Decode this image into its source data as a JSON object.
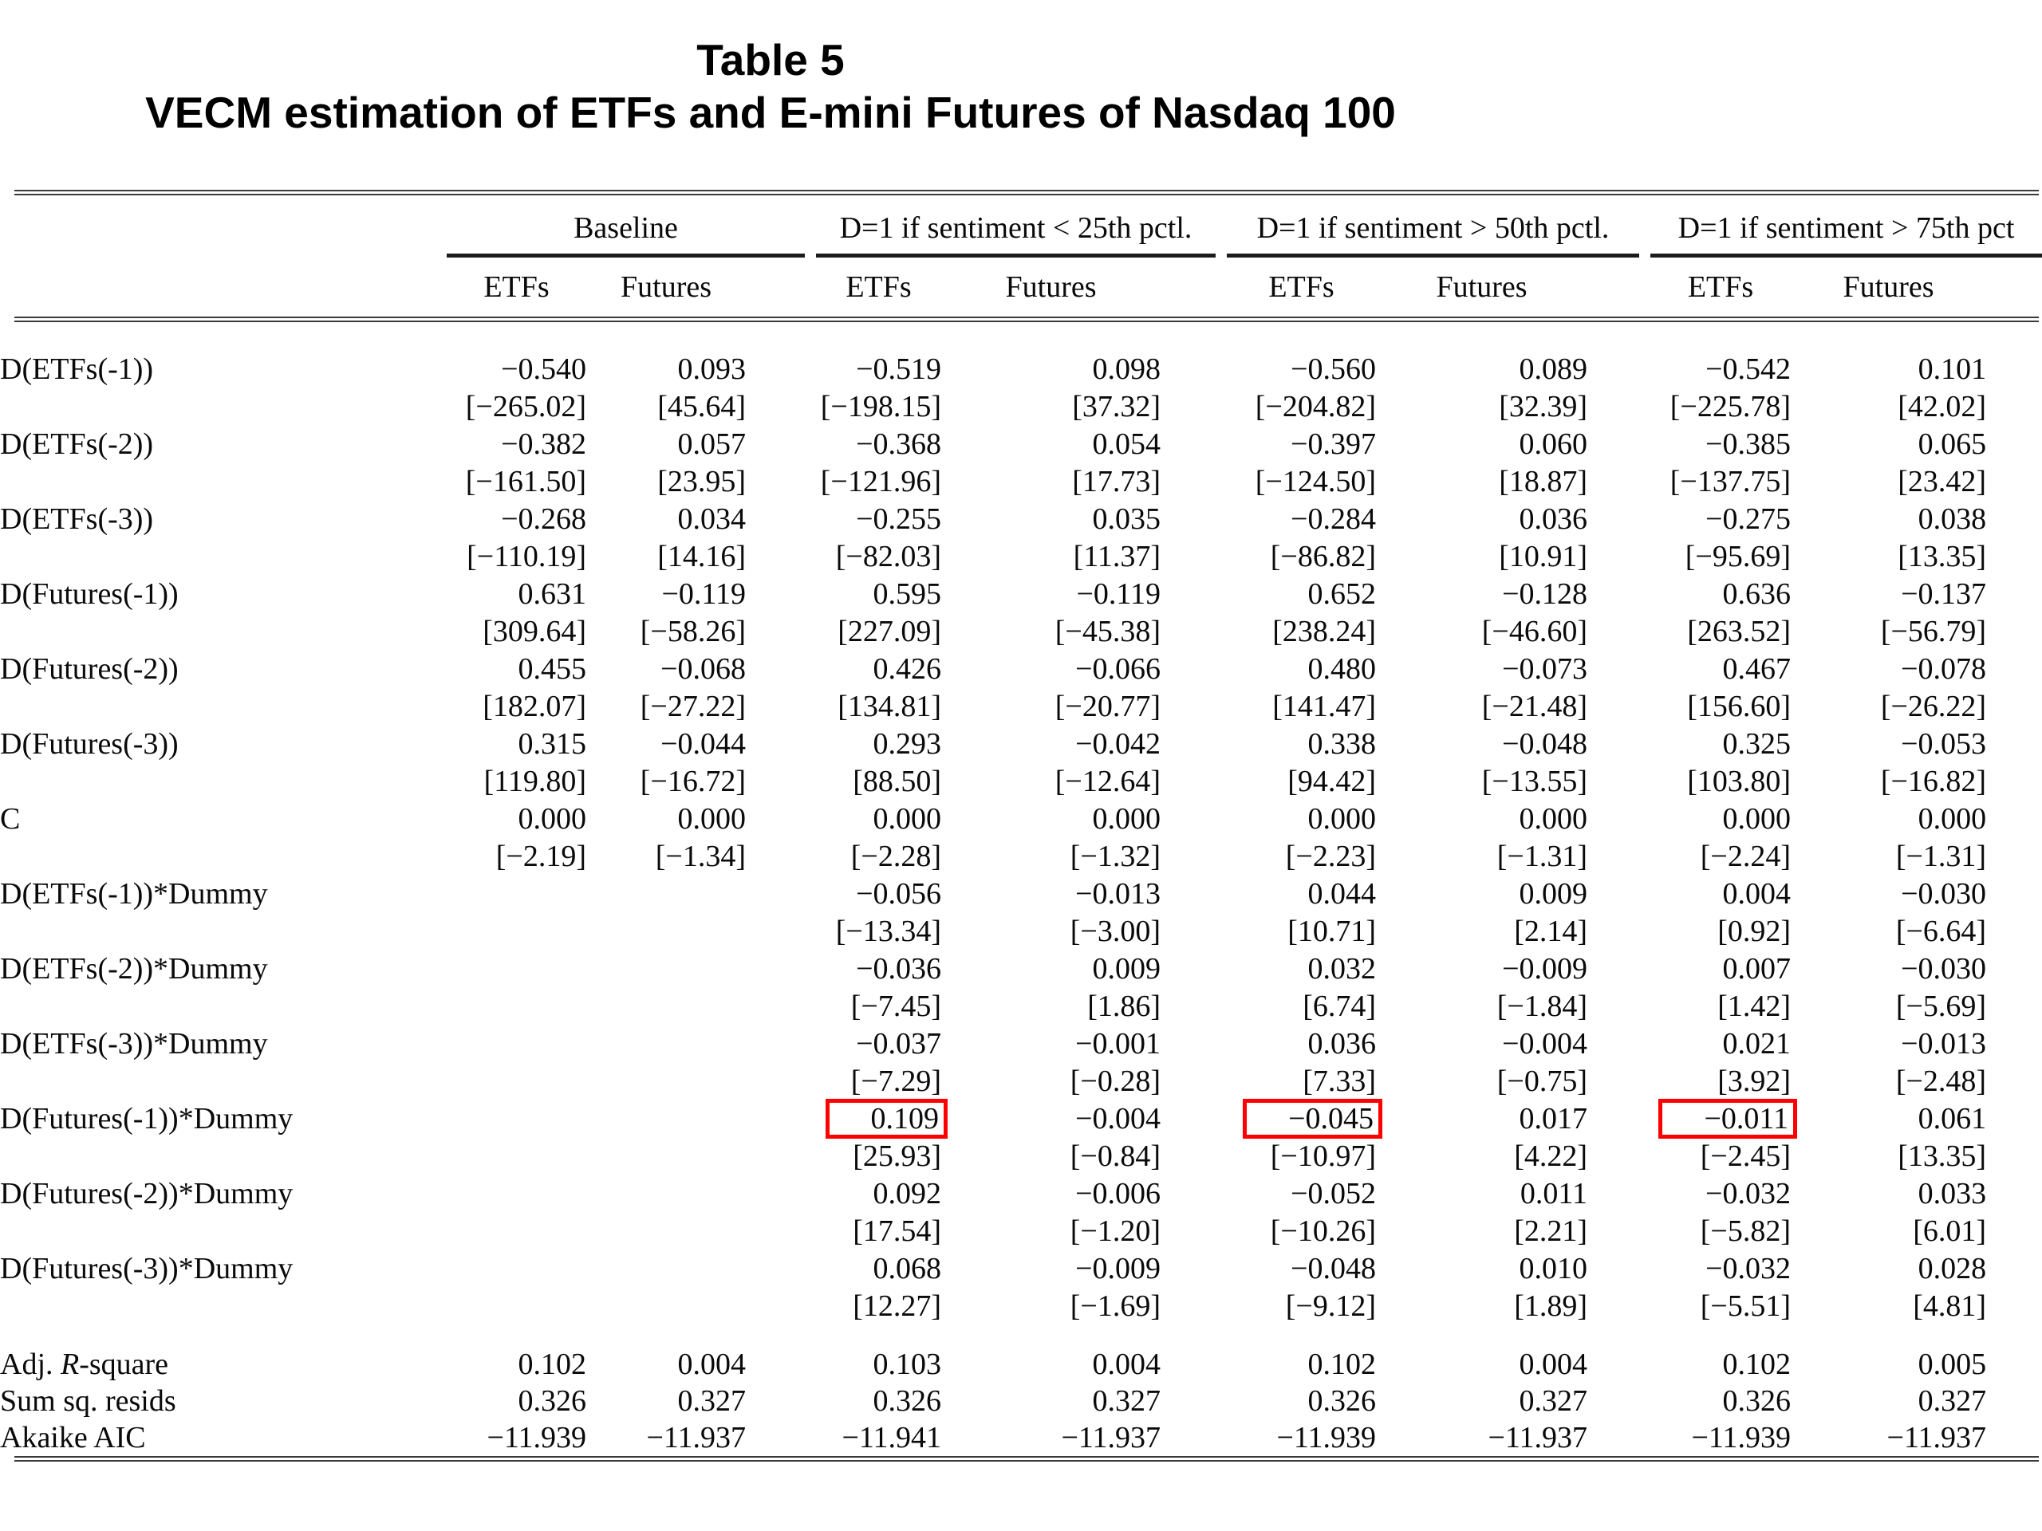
{
  "title": {
    "line1": "Table 5",
    "line2": "VECM estimation of ETFs and E-mini Futures of Nasdaq 100"
  },
  "table": {
    "col_groups": [
      {
        "label": "Baseline",
        "sub": [
          "ETFs",
          "Futures"
        ]
      },
      {
        "label": "D=1 if sentiment < 25th pctl.",
        "sub": [
          "ETFs",
          "Futures"
        ]
      },
      {
        "label": "D=1 if sentiment > 50th pctl.",
        "sub": [
          "ETFs",
          "Futures"
        ]
      },
      {
        "label": "D=1 if sentiment > 75th pct",
        "sub": [
          "ETFs",
          "Futures"
        ]
      }
    ],
    "rows": [
      {
        "label": "D(ETFs(-1))",
        "coef": [
          "-0.540",
          "0.093",
          "-0.519",
          "0.098",
          "-0.560",
          "0.089",
          "-0.542",
          "0.101"
        ],
        "tstat": [
          "[-265.02]",
          "[45.64]",
          "[-198.15]",
          "[37.32]",
          "[-204.82]",
          "[32.39]",
          "[-225.78]",
          "[42.02]"
        ]
      },
      {
        "label": "D(ETFs(-2))",
        "coef": [
          "-0.382",
          "0.057",
          "-0.368",
          "0.054",
          "-0.397",
          "0.060",
          "-0.385",
          "0.065"
        ],
        "tstat": [
          "[-161.50]",
          "[23.95]",
          "[-121.96]",
          "[17.73]",
          "[-124.50]",
          "[18.87]",
          "[-137.75]",
          "[23.42]"
        ]
      },
      {
        "label": "D(ETFs(-3))",
        "coef": [
          "-0.268",
          "0.034",
          "-0.255",
          "0.035",
          "-0.284",
          "0.036",
          "-0.275",
          "0.038"
        ],
        "tstat": [
          "[-110.19]",
          "[14.16]",
          "[-82.03]",
          "[11.37]",
          "[-86.82]",
          "[10.91]",
          "[-95.69]",
          "[13.35]"
        ]
      },
      {
        "label": "D(Futures(-1))",
        "coef": [
          "0.631",
          "-0.119",
          "0.595",
          "-0.119",
          "0.652",
          "-0.128",
          "0.636",
          "-0.137"
        ],
        "tstat": [
          "[309.64]",
          "[-58.26]",
          "[227.09]",
          "[-45.38]",
          "[238.24]",
          "[-46.60]",
          "[263.52]",
          "[-56.79]"
        ]
      },
      {
        "label": "D(Futures(-2))",
        "coef": [
          "0.455",
          "-0.068",
          "0.426",
          "-0.066",
          "0.480",
          "-0.073",
          "0.467",
          "-0.078"
        ],
        "tstat": [
          "[182.07]",
          "[-27.22]",
          "[134.81]",
          "[-20.77]",
          "[141.47]",
          "[-21.48]",
          "[156.60]",
          "[-26.22]"
        ]
      },
      {
        "label": "D(Futures(-3))",
        "coef": [
          "0.315",
          "-0.044",
          "0.293",
          "-0.042",
          "0.338",
          "-0.048",
          "0.325",
          "-0.053"
        ],
        "tstat": [
          "[119.80]",
          "[-16.72]",
          "[88.50]",
          "[-12.64]",
          "[94.42]",
          "[-13.55]",
          "[103.80]",
          "[-16.82]"
        ]
      },
      {
        "label": "C",
        "coef": [
          "0.000",
          "0.000",
          "0.000",
          "0.000",
          "0.000",
          "0.000",
          "0.000",
          "0.000"
        ],
        "tstat": [
          "[-2.19]",
          "[-1.34]",
          "[-2.28]",
          "[-1.32]",
          "[-2.23]",
          "[-1.31]",
          "[-2.24]",
          "[-1.31]"
        ]
      },
      {
        "label": "D(ETFs(-1))*Dummy",
        "coef": [
          "",
          "",
          "-0.056",
          "-0.013",
          "0.044",
          "0.009",
          "0.004",
          "-0.030"
        ],
        "tstat": [
          "",
          "",
          "[-13.34]",
          "[-3.00]",
          "[10.71]",
          "[2.14]",
          "[0.92]",
          "[-6.64]"
        ]
      },
      {
        "label": "D(ETFs(-2))*Dummy",
        "coef": [
          "",
          "",
          "-0.036",
          "0.009",
          "0.032",
          "-0.009",
          "0.007",
          "-0.030"
        ],
        "tstat": [
          "",
          "",
          "[-7.45]",
          "[1.86]",
          "[6.74]",
          "[-1.84]",
          "[1.42]",
          "[-5.69]"
        ]
      },
      {
        "label": "D(ETFs(-3))*Dummy",
        "coef": [
          "",
          "",
          "-0.037",
          "-0.001",
          "0.036",
          "-0.004",
          "0.021",
          "-0.013"
        ],
        "tstat": [
          "",
          "",
          "[-7.29]",
          "[-0.28]",
          "[7.33]",
          "[-0.75]",
          "[3.92]",
          "[-2.48]"
        ]
      },
      {
        "label": "D(Futures(-1))*Dummy",
        "coef": [
          "",
          "",
          "0.109",
          "-0.004",
          "-0.045",
          "0.017",
          "-0.011",
          "0.061"
        ],
        "tstat": [
          "",
          "",
          "[25.93]",
          "[-0.84]",
          "[-10.97]",
          "[4.22]",
          "[-2.45]",
          "[13.35]"
        ]
      },
      {
        "label": "D(Futures(-2))*Dummy",
        "coef": [
          "",
          "",
          "0.092",
          "-0.006",
          "-0.052",
          "0.011",
          "-0.032",
          "0.033"
        ],
        "tstat": [
          "",
          "",
          "[17.54]",
          "[-1.20]",
          "[-10.26]",
          "[2.21]",
          "[-5.82]",
          "[6.01]"
        ]
      },
      {
        "label": "D(Futures(-3))*Dummy",
        "coef": [
          "",
          "",
          "0.068",
          "-0.009",
          "-0.048",
          "0.010",
          "-0.032",
          "0.028"
        ],
        "tstat": [
          "",
          "",
          "[12.27]",
          "[-1.69]",
          "[-9.12]",
          "[1.89]",
          "[-5.51]",
          "[4.81]"
        ]
      }
    ],
    "highlight": {
      "row_label": "D(Futures(-1))*Dummy",
      "cell_indices": [
        2,
        4,
        6
      ],
      "box_color": "#ff0000"
    },
    "stats": [
      {
        "label_prefix": "Adj. ",
        "label_italic": "R",
        "label_suffix": "-square",
        "values": [
          "0.102",
          "0.004",
          "0.103",
          "0.004",
          "0.102",
          "0.004",
          "0.102",
          "0.005"
        ]
      },
      {
        "label": "Sum sq. resids",
        "values": [
          "0.326",
          "0.327",
          "0.326",
          "0.327",
          "0.326",
          "0.327",
          "0.326",
          "0.327"
        ]
      },
      {
        "label": "Akaike AIC",
        "values": [
          "-11.939",
          "-11.937",
          "-11.941",
          "-11.937",
          "-11.939",
          "-11.937",
          "-11.939",
          "-11.937"
        ]
      }
    ]
  }
}
